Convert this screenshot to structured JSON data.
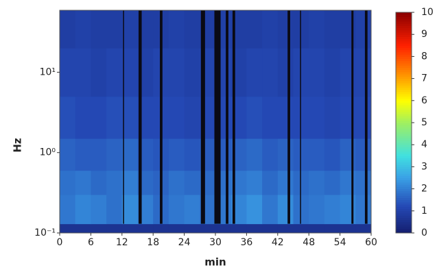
{
  "chart_data": {
    "type": "heatmap",
    "xlabel": "min",
    "ylabel": "Hz",
    "ylog": true,
    "x": [
      0,
      3,
      6,
      9,
      12,
      15,
      18,
      21,
      24,
      27,
      30,
      33,
      36,
      39,
      42,
      45,
      48,
      51,
      54,
      57,
      60
    ],
    "y": [
      0.1,
      0.13,
      0.3,
      0.6,
      1.5,
      5,
      20,
      59
    ],
    "z": [
      [
        0.6,
        0.6,
        0.6,
        0.6,
        0.6,
        0.6,
        0.6,
        0.6,
        0.6,
        0.6,
        0.6,
        0.6,
        0.6,
        0.6,
        0.6,
        0.6,
        0.6,
        0.6,
        0.6,
        0.6
      ],
      [
        1.9,
        2.1,
        2.0,
        1.8,
        2.2,
        2.0,
        1.7,
        1.9,
        2.0,
        1.8,
        1.9,
        2.1,
        2.3,
        1.9,
        2.2,
        1.8,
        1.9,
        2.0,
        2.1,
        1.9
      ],
      [
        1.8,
        1.9,
        1.7,
        1.8,
        2.0,
        1.7,
        1.6,
        1.8,
        1.7,
        1.7,
        1.8,
        1.9,
        2.0,
        1.7,
        1.9,
        1.7,
        1.8,
        1.7,
        1.9,
        1.8
      ],
      [
        1.6,
        1.5,
        1.5,
        1.6,
        1.7,
        1.5,
        1.4,
        1.5,
        1.4,
        1.5,
        1.5,
        1.6,
        1.7,
        1.5,
        1.6,
        1.5,
        1.5,
        1.4,
        1.6,
        1.5
      ],
      [
        1.3,
        1.2,
        1.2,
        1.3,
        1.3,
        1.2,
        1.2,
        1.2,
        1.1,
        1.2,
        1.2,
        1.2,
        1.3,
        1.2,
        1.2,
        1.2,
        1.2,
        1.1,
        1.2,
        1.2
      ],
      [
        1.1,
        1.1,
        1.0,
        1.1,
        1.1,
        1.0,
        1.1,
        1.1,
        1.0,
        1.1,
        1.1,
        1.0,
        1.1,
        1.1,
        1.0,
        1.1,
        1.1,
        1.0,
        1.1,
        1.1
      ],
      [
        0.9,
        1.0,
        0.9,
        0.9,
        1.0,
        0.9,
        0.9,
        1.0,
        0.9,
        0.9,
        1.0,
        0.9,
        0.9,
        1.0,
        0.9,
        0.9,
        1.0,
        0.9,
        0.9,
        1.0
      ]
    ],
    "gaps": [
      [
        12.2,
        12.4
      ],
      [
        15.2,
        15.8
      ],
      [
        19.3,
        19.8
      ],
      [
        27.2,
        28
      ],
      [
        29.8,
        31
      ],
      [
        32,
        32.5
      ],
      [
        33.3,
        33.8
      ],
      [
        43.9,
        44.4
      ],
      [
        46.3,
        46.5
      ],
      [
        56.2,
        56.6
      ],
      [
        58.8,
        59.3
      ]
    ],
    "xlim": [
      0,
      60
    ],
    "xticks": [
      0,
      6,
      12,
      18,
      24,
      30,
      36,
      42,
      48,
      54,
      60
    ],
    "ylim": [
      0.1,
      59
    ],
    "yticks": [
      {
        "value": 0.1,
        "label": "10⁻¹"
      },
      {
        "value": 1,
        "label": "10⁰"
      },
      {
        "value": 10,
        "label": "10¹"
      }
    ],
    "clim": [
      0,
      10
    ],
    "cticks": [
      0,
      1,
      2,
      3,
      4,
      5,
      6,
      7,
      8,
      9,
      10
    ]
  }
}
